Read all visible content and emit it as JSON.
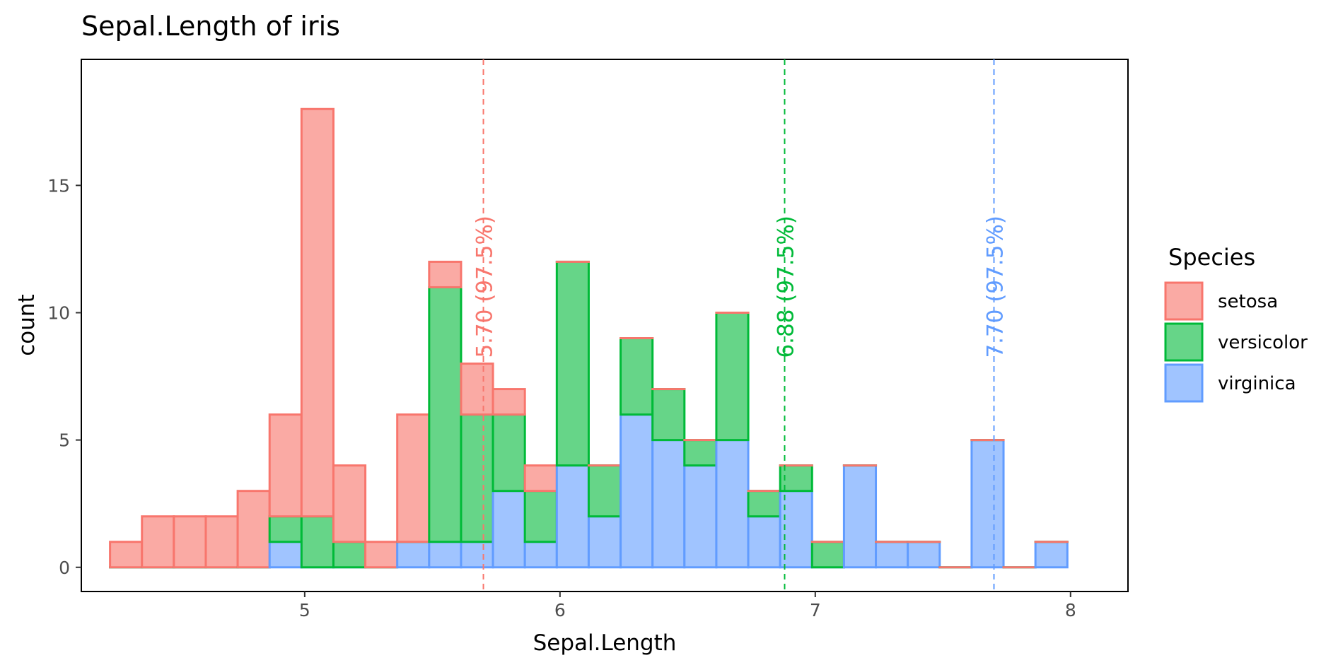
{
  "chart_data": {
    "type": "bar",
    "title": "Sepal.Length of iris",
    "xlabel": "Sepal.Length",
    "ylabel": "count",
    "xlim": [
      4.125,
      8.225
    ],
    "ylim": [
      -0.95,
      19.95
    ],
    "x_ticks": [
      5,
      6,
      7,
      8
    ],
    "y_ticks": [
      0,
      5,
      10,
      15
    ],
    "grid": false,
    "legend": {
      "title": "Species",
      "position": "right"
    },
    "bin_edges": [
      4.2375,
      4.3625,
      4.4875,
      4.6125,
      4.7375,
      4.8625,
      4.9875,
      5.1125,
      5.2375,
      5.3625,
      5.4875,
      5.6125,
      5.7375,
      5.8625,
      5.9875,
      6.1125,
      6.2375,
      6.3625,
      6.4875,
      6.6125,
      6.7375,
      6.8625,
      6.9875,
      7.1125,
      7.2375,
      7.3625,
      7.4875,
      7.6125,
      7.7375,
      7.8625,
      7.9875
    ],
    "series": [
      {
        "name": "setosa",
        "color": "#F8766D",
        "values": [
          1,
          2,
          2,
          2,
          3,
          4,
          16,
          3,
          1,
          5,
          1,
          2,
          1,
          1,
          0,
          0,
          0,
          0,
          0,
          0,
          0,
          0,
          0,
          0,
          0,
          0,
          0,
          0,
          0,
          0
        ]
      },
      {
        "name": "versicolor",
        "color": "#00BA38",
        "values": [
          0,
          0,
          0,
          0,
          0,
          1,
          2,
          1,
          0,
          0,
          10,
          5,
          3,
          2,
          8,
          2,
          3,
          2,
          1,
          5,
          1,
          1,
          1,
          0,
          0,
          0,
          0,
          0,
          0,
          0
        ]
      },
      {
        "name": "virginica",
        "color": "#619CFF",
        "values": [
          0,
          0,
          0,
          0,
          0,
          1,
          0,
          0,
          0,
          1,
          1,
          1,
          3,
          1,
          4,
          2,
          6,
          5,
          4,
          5,
          2,
          3,
          0,
          4,
          1,
          1,
          0,
          5,
          0,
          1
        ]
      }
    ],
    "annotations": [
      {
        "series": "setosa",
        "x": 5.7,
        "label": "5.70 (97.5%)",
        "color": "#F8766D"
      },
      {
        "series": "versicolor",
        "x": 6.88,
        "label": "6.88 (97.5%)",
        "color": "#00BA38"
      },
      {
        "series": "virginica",
        "x": 7.7,
        "label": "7.70 (97.5%)",
        "color": "#619CFF"
      }
    ]
  }
}
